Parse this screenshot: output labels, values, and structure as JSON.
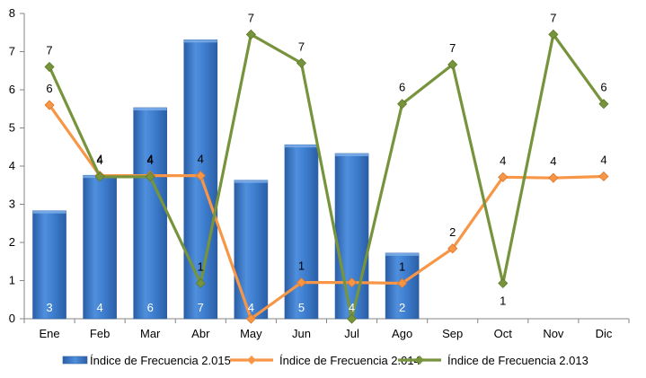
{
  "chart_data": {
    "type": "bar",
    "categories": [
      "Ene",
      "Feb",
      "Mar",
      "Abr",
      "May",
      "Jun",
      "Jul",
      "Ago",
      "Sep",
      "Oct",
      "Nov",
      "Dic"
    ],
    "ylim": [
      0,
      8
    ],
    "yticks": [
      "0",
      "1",
      "2",
      "3",
      "4",
      "5",
      "6",
      "7",
      "8"
    ],
    "grid": false,
    "legend_position": "bottom",
    "series": [
      {
        "name": "Índice de Frecuencia 2.015",
        "kind": "bar",
        "color": "#3b78c9",
        "values": [
          2.83,
          3.76,
          5.53,
          7.31,
          3.63,
          4.56,
          4.33,
          1.72,
          null,
          null,
          null,
          null
        ],
        "labels": [
          "3",
          "4",
          "6",
          "7",
          "4",
          "5",
          "4",
          "2",
          "",
          "",
          "",
          ""
        ]
      },
      {
        "name": "Índice de Frecuencia 2.014",
        "kind": "line",
        "color": "#f79646",
        "values": [
          5.6,
          3.75,
          3.75,
          3.75,
          0.0,
          0.95,
          0.95,
          0.93,
          1.84,
          3.71,
          3.69,
          3.73
        ],
        "labels": [
          "6",
          "4",
          "4",
          "4",
          "",
          "1",
          "",
          "1",
          "2",
          "4",
          "4",
          "4"
        ]
      },
      {
        "name": "Índice de Frecuencia 2.013",
        "kind": "line",
        "color": "#77933c",
        "values": [
          6.6,
          3.72,
          3.72,
          0.93,
          7.45,
          6.7,
          0.0,
          5.63,
          6.66,
          0.93,
          7.45,
          5.63
        ],
        "labels": [
          "7",
          "4",
          "4",
          "1",
          "7",
          "7",
          "",
          "6",
          "7",
          "1",
          "7",
          "6"
        ]
      }
    ]
  }
}
